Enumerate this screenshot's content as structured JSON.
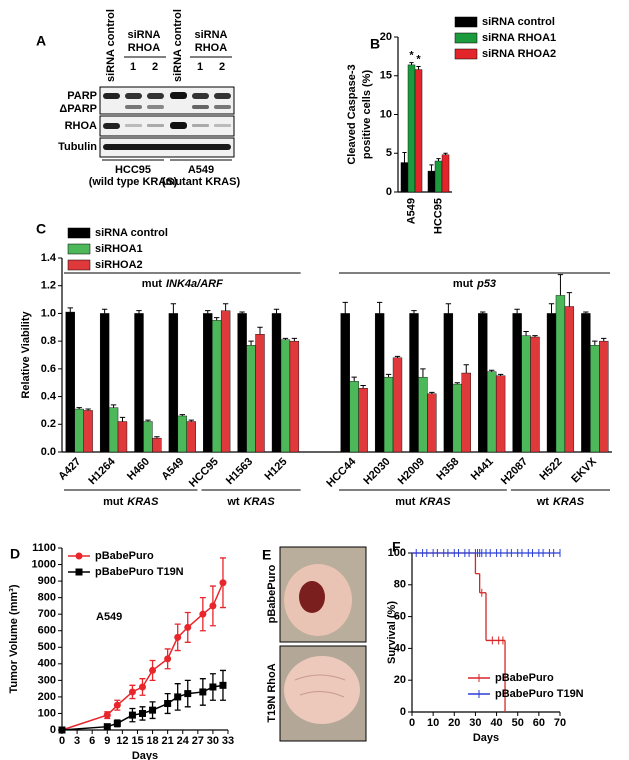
{
  "chart_data": [
    {
      "type": "bar",
      "panel": "B",
      "ylabel": [
        "Cleaved Caspase-3",
        "positive cells (%)"
      ],
      "categories": [
        "A549",
        "HCC95"
      ],
      "series": [
        {
          "name": "siRNA control",
          "color": "#000000",
          "values": [
            3.8,
            2.7
          ],
          "errors": [
            1.3,
            0.8
          ]
        },
        {
          "name": "siRNA RHOA1",
          "color": "#1b9a3e",
          "values": [
            16.4,
            4.0
          ],
          "errors": [
            0.3,
            0.3
          ],
          "annotations": [
            "*",
            null
          ]
        },
        {
          "name": "siRNA RHOA2",
          "color": "#e3242b",
          "values": [
            15.8,
            4.8
          ],
          "errors": [
            0.4,
            0.2
          ],
          "annotations": [
            "*",
            null
          ]
        }
      ],
      "ylim": [
        0,
        20
      ],
      "yticks": [
        0,
        5,
        10,
        15,
        20
      ]
    },
    {
      "type": "bar",
      "panel": "C",
      "ylabel": "Relative Viability",
      "groups": [
        {
          "label": "mut",
          "gene": "INK4a/ARF",
          "subgroups": [
            {
              "label": "mut",
              "gene": "KRAS",
              "categories": [
                "A427",
                "H1264",
                "H460",
                "A549"
              ]
            },
            {
              "label": "wt",
              "gene": "KRAS",
              "categories": [
                "HCC95",
                "H1563",
                "H125"
              ]
            }
          ]
        },
        {
          "label": "mut",
          "gene": "p53",
          "subgroups": [
            {
              "label": "mut",
              "gene": "KRAS",
              "categories": [
                "HCC44",
                "H2030",
                "H2009",
                "H358",
                "H441"
              ]
            },
            {
              "label": "wt",
              "gene": "KRAS",
              "categories": [
                "H2087",
                "H522",
                "EKVX"
              ]
            }
          ]
        }
      ],
      "series": [
        {
          "name": "siRNA control",
          "color": "#000000",
          "values": [
            1.01,
            1.0,
            1.0,
            1.0,
            1.0,
            1.0,
            1.0,
            1.0,
            1.0,
            1.0,
            1.0,
            1.0,
            1.0,
            1.0,
            1.0
          ],
          "errors": [
            0.03,
            0.03,
            0.02,
            0.07,
            0.02,
            0.01,
            0.03,
            0.08,
            0.08,
            0.02,
            0.07,
            0.01,
            0.03,
            0.07,
            0.01
          ]
        },
        {
          "name": "siRHOA1",
          "color": "#4cb85a",
          "values": [
            0.31,
            0.32,
            0.22,
            0.26,
            0.95,
            0.77,
            0.81,
            0.51,
            0.54,
            0.54,
            0.49,
            0.58,
            0.84,
            1.13,
            0.77
          ],
          "errors": [
            0.01,
            0.02,
            0.01,
            0.01,
            0.02,
            0.03,
            0.01,
            0.03,
            0.02,
            0.06,
            0.01,
            0.01,
            0.03,
            0.15,
            0.03
          ]
        },
        {
          "name": "siRHOA2",
          "color": "#e0393c",
          "values": [
            0.3,
            0.22,
            0.1,
            0.22,
            1.02,
            0.85,
            0.8,
            0.46,
            0.68,
            0.42,
            0.57,
            0.55,
            0.83,
            1.05,
            0.8
          ],
          "errors": [
            0.01,
            0.03,
            0.01,
            0.01,
            0.05,
            0.05,
            0.02,
            0.02,
            0.01,
            0.01,
            0.06,
            0.01,
            0.01,
            0.1,
            0.02
          ]
        }
      ],
      "ylim": [
        0,
        1.4
      ],
      "yticks": [
        {
          "value": 0,
          "label": "0.0"
        },
        0.2,
        0.4,
        0.6,
        0.8,
        {
          "value": 1,
          "label": "1.0"
        },
        1.2,
        1.4
      ]
    },
    {
      "type": "line",
      "panel": "D",
      "ylabel": "Tumor Volume (mm³)",
      "xlabel": "Days",
      "annotation": "A549",
      "x": [
        0,
        9,
        11,
        14,
        16,
        18,
        21,
        23,
        25,
        28,
        30,
        32
      ],
      "series": [
        {
          "name": "pBabePuro",
          "color": "#e8262b",
          "marker": "circle",
          "values": [
            0,
            90,
            150,
            230,
            260,
            360,
            430,
            560,
            620,
            700,
            750,
            890
          ],
          "errors": [
            0,
            20,
            30,
            40,
            50,
            60,
            60,
            80,
            90,
            100,
            120,
            150
          ]
        },
        {
          "name": "pBabePuro T19N",
          "color": "#000000",
          "marker": "square",
          "values": [
            0,
            20,
            40,
            90,
            100,
            120,
            160,
            200,
            220,
            230,
            260,
            270
          ],
          "errors": [
            0,
            10,
            20,
            40,
            40,
            50,
            60,
            80,
            80,
            80,
            80,
            90
          ]
        }
      ],
      "xlim": [
        0,
        33
      ],
      "xticks": [
        0,
        3,
        6,
        9,
        12,
        15,
        18,
        21,
        24,
        27,
        30,
        33
      ],
      "ylim": [
        0,
        1100
      ],
      "yticks": [
        0,
        100,
        200,
        300,
        400,
        500,
        600,
        700,
        800,
        900,
        1000,
        1100
      ]
    },
    {
      "type": "step",
      "panel": "F",
      "ylabel": "Survival (%)",
      "xlabel": "Days",
      "series": [
        {
          "name": "pBabePuro",
          "color": "#d62728",
          "x": [
            0,
            30,
            32,
            35,
            44
          ],
          "values": [
            100,
            87,
            75,
            45,
            0
          ],
          "censored": [
            33,
            38,
            41,
            43
          ]
        },
        {
          "name": "pBabePuro T19N",
          "color": "#2a3fd6",
          "x": [
            0,
            70
          ],
          "values": [
            100,
            100
          ],
          "censored": [
            2,
            5,
            7,
            10,
            12,
            15,
            17,
            20,
            22,
            25,
            27,
            30,
            31,
            32,
            33,
            35,
            37,
            40,
            42,
            45,
            47,
            50,
            52,
            55,
            57,
            60,
            62,
            65,
            67,
            70
          ]
        }
      ],
      "xlim": [
        0,
        70
      ],
      "xticks": [
        0,
        10,
        20,
        30,
        40,
        50,
        60,
        70
      ],
      "ylim": [
        0,
        100
      ],
      "yticks": [
        0,
        20,
        40,
        60,
        80,
        100
      ]
    }
  ],
  "blot": {
    "panel": "A",
    "columns": [
      {
        "label": "siRNA control"
      },
      {
        "label": [
          "siRNA",
          "RHOA"
        ],
        "lanes": [
          "1",
          "2"
        ]
      },
      {
        "label": "siRNA control"
      },
      {
        "label": [
          "siRNA",
          "RHOA"
        ],
        "lanes": [
          "1",
          "2"
        ]
      }
    ],
    "rows": [
      "PARP",
      "ΔPARP",
      "RHOA",
      "Tubulin"
    ],
    "cell_lines": [
      {
        "name": "HCC95",
        "note": "(wild type KRAS)"
      },
      {
        "name": "A549",
        "note": "(mutant KRAS)"
      }
    ]
  },
  "photos": {
    "panel": "E",
    "labels": [
      "pBabePuro",
      "T19N RhoA"
    ]
  }
}
